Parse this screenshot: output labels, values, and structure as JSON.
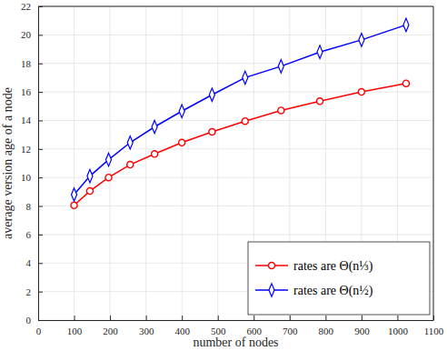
{
  "chart_data": {
    "type": "line",
    "x_label": "number of nodes",
    "y_label": "average version age of a node",
    "x": [
      100,
      144,
      196,
      256,
      324,
      400,
      484,
      576,
      676,
      784,
      900,
      1024
    ],
    "series": [
      {
        "name": "rates are Θ(n⅓)",
        "color": "#ff0000",
        "marker": "circle",
        "line_style": "solid",
        "values": [
          8.05,
          9.05,
          10.0,
          10.9,
          11.65,
          12.45,
          13.2,
          13.95,
          14.7,
          15.35,
          16.0,
          16.6
        ]
      },
      {
        "name": "rates are Θ(n½)",
        "color": "#0000ff",
        "marker": "diamond",
        "line_style": "solid",
        "values": [
          8.8,
          10.1,
          11.25,
          12.45,
          13.55,
          14.65,
          15.8,
          17.0,
          17.8,
          18.8,
          19.65,
          20.7
        ]
      }
    ],
    "xlim": [
      0,
      1100
    ],
    "xticks": [
      0,
      100,
      200,
      300,
      400,
      500,
      600,
      700,
      800,
      900,
      1000,
      1100
    ],
    "ylim": [
      0,
      22
    ],
    "yticks": [
      0,
      2,
      4,
      6,
      8,
      10,
      12,
      14,
      16,
      18,
      20,
      22
    ],
    "grid": true,
    "legend": "lower right"
  }
}
